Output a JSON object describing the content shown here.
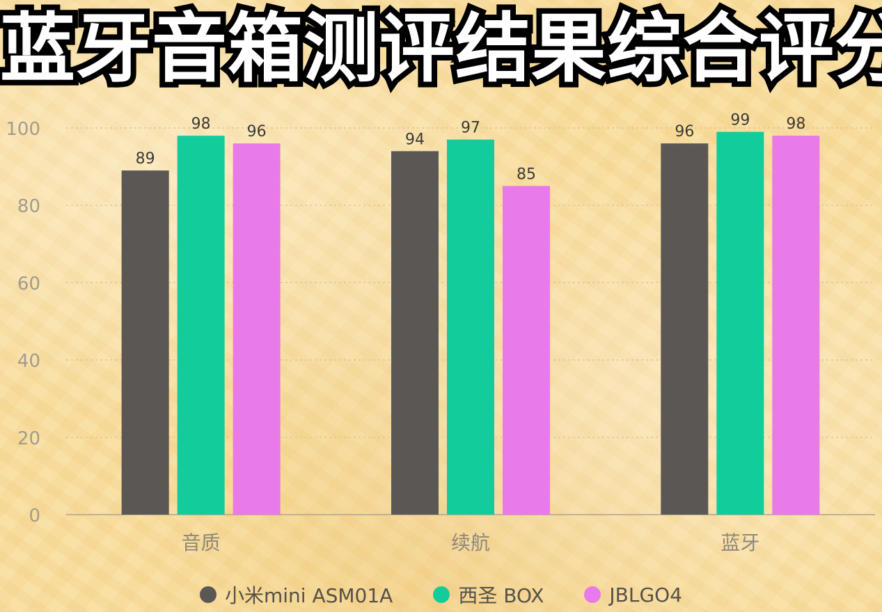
{
  "title": "蓝牙音箱测评结果综合评分",
  "chart_data": {
    "type": "bar",
    "title": "蓝牙音箱测评结果综合评分",
    "categories": [
      "音质",
      "续航",
      "蓝牙"
    ],
    "series": [
      {
        "name": "小米mini ASM01A",
        "values": [
          89,
          94,
          96
        ],
        "color": "#5b5754"
      },
      {
        "name": "西圣 BOX",
        "values": [
          98,
          97,
          99
        ],
        "color": "#13cc9c"
      },
      {
        "name": "JBLGO4",
        "values": [
          96,
          85,
          98
        ],
        "color": "#e97ae9"
      }
    ],
    "ylim": [
      0,
      100
    ],
    "yticks": [
      0,
      20,
      40,
      60,
      80,
      100
    ],
    "grid": true,
    "legend_position": "bottom",
    "xlabel": "",
    "ylabel": ""
  }
}
